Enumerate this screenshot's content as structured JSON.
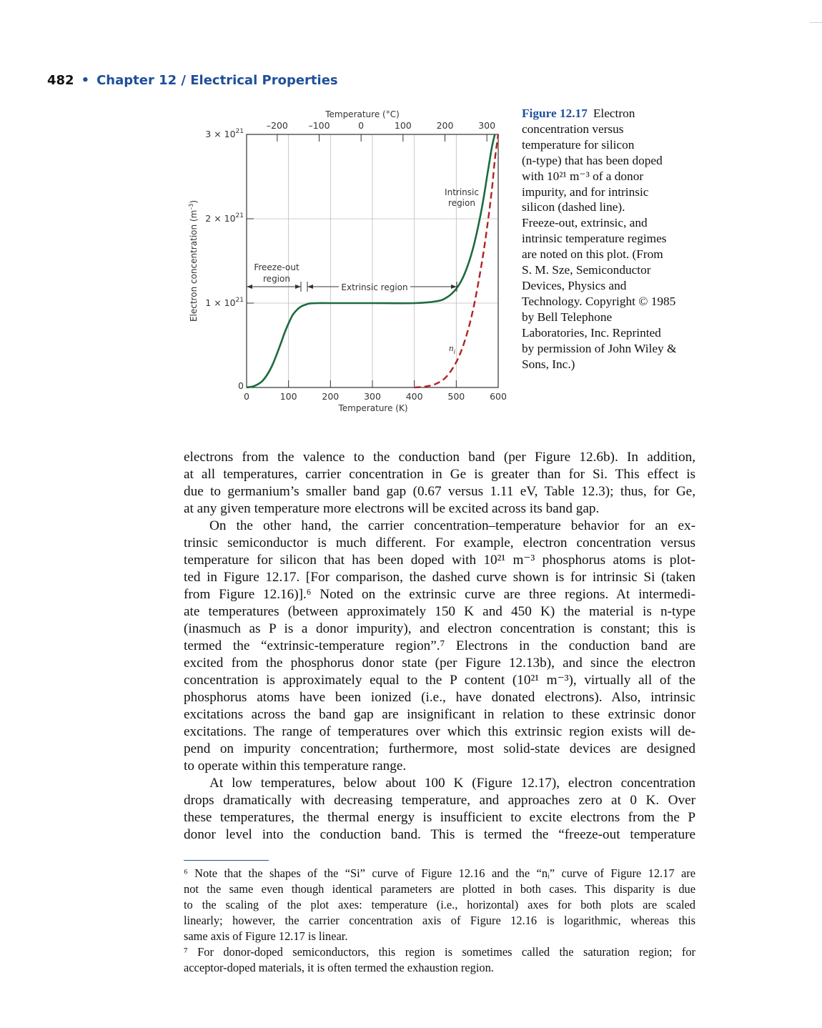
{
  "header": {
    "page_number": "482",
    "separator": "•",
    "chapter": "Chapter 12 / Electrical Properties"
  },
  "chart_data": {
    "type": "line",
    "title": "",
    "xlabel": "Temperature (K)",
    "x2label": "Temperature (°C)",
    "ylabel": "Electron concentration (m⁻³)",
    "xlim": [
      0,
      600
    ],
    "ylim": [
      0,
      3e+21
    ],
    "x_ticks": [
      "0",
      "100",
      "200",
      "300",
      "400",
      "500",
      "600"
    ],
    "x2_ticks": [
      "–200",
      "–100",
      "0",
      "100",
      "200",
      "300"
    ],
    "y_ticks": [
      {
        "mantissa": "0",
        "exp": ""
      },
      {
        "mantissa": "1 × 10",
        "exp": "21"
      },
      {
        "mantissa": "2 × 10",
        "exp": "21"
      },
      {
        "mantissa": "3 × 10",
        "exp": "21"
      }
    ],
    "grid": true,
    "series": [
      {
        "name": "",
        "style": "solid",
        "color": "#1d6b3c",
        "x": [
          0,
          20,
          40,
          60,
          80,
          90,
          100,
          110,
          120,
          130,
          140,
          150,
          170,
          200,
          300,
          400,
          450,
          475,
          500,
          520,
          540,
          560,
          575,
          585,
          592
        ],
        "y": [
          0,
          2e+19,
          9e+19,
          2.5e+20,
          5e+20,
          6.4e+20,
          7.6e+20,
          8.6e+20,
          9.2e+20,
          9.6e+20,
          9.8e+20,
          9.95e+20,
          1e+21,
          1e+21,
          1e+21,
          1e+21,
          1.02e+21,
          1.06e+21,
          1.17e+21,
          1.35e+21,
          1.65e+21,
          2.1e+21,
          2.55e+21,
          2.85e+21,
          3e+21
        ]
      },
      {
        "name": "",
        "style": "dashed",
        "color": "#b22222",
        "x": [
          400,
          425,
          450,
          475,
          500,
          520,
          540,
          560,
          575,
          585,
          592,
          600
        ],
        "y": [
          0,
          1e+19,
          4e+19,
          1.2e+20,
          3e+20,
          5.5e+20,
          9.2e+20,
          1.45e+21,
          1.95e+21,
          2.35e+21,
          2.7e+21,
          3e+21
        ]
      }
    ],
    "annotations": {
      "freeze_out": "Freeze-out\nregion",
      "extrinsic": "Extrinsic region",
      "intrinsic": "Intrinsic\nregion",
      "ni_main": "n",
      "ni_sub": "i"
    }
  },
  "caption": {
    "label": "Figure 12.17",
    "lines": [
      "Electron",
      "concentration versus",
      "temperature for silicon",
      "(n-type) that has been doped",
      "with 10²¹ m⁻³ of a donor",
      "impurity, and for intrinsic",
      "silicon (dashed line).",
      "Freeze-out, extrinsic, and",
      "intrinsic temperature regimes",
      "are noted on this plot. (From",
      "S. M. Sze, Semiconductor",
      "Devices, Physics and",
      "Technology. Copyright © 1985",
      "by Bell Telephone",
      "Laboratories, Inc. Reprinted",
      "by permission of John Wiley &",
      "Sons, Inc.)"
    ]
  },
  "body": {
    "lines": [
      "electrons from the valence to the conduction band (per Figure 12.6b). In addition,",
      "at all temperatures, carrier concentration in Ge is greater than for Si. This effect is",
      "due to germanium’s smaller band gap (0.67 versus 1.11 eV, Table 12.3); thus, for Ge,",
      "at any given temperature more electrons will be excited across its band gap.",
      "On the other hand, the carrier concentration–temperature behavior for an ex-",
      "trinsic semiconductor is much different. For example, electron concentration versus",
      "temperature for silicon that has been doped with 10²¹ m⁻³ phosphorus atoms is plot-",
      "ted in Figure 12.17. [For comparison, the dashed curve shown is for intrinsic Si (taken",
      "from Figure 12.16)].⁶ Noted on the extrinsic curve are three regions. At intermedi-",
      "ate temperatures (between approximately 150 K and 450 K) the material is n-type",
      "(inasmuch as P is a donor impurity), and electron concentration is constant; this is",
      "termed the “extrinsic-temperature region”.⁷ Electrons in the conduction band are",
      "excited from the phosphorus donor state (per Figure 12.13b), and since the electron",
      "concentration is approximately equal to the P content (10²¹ m⁻³), virtually all of the",
      "phosphorus atoms have been ionized (i.e., have donated electrons). Also, intrinsic",
      "excitations across the band gap are insignificant in relation to these extrinsic donor",
      "excitations. The range of temperatures over which this extrinsic region exists will de-",
      "pend on impurity concentration; furthermore, most solid-state devices are designed",
      "to operate within this temperature range.",
      "At low temperatures, below about 100 K (Figure 12.17), electron concentration",
      "drops dramatically with decreasing temperature, and approaches zero at 0 K. Over",
      "these temperatures, the thermal energy is insufficient to excite electrons from the P",
      "donor level into the conduction band. This is termed the “freeze-out temperature"
    ]
  },
  "footnotes": {
    "fn6": [
      "⁶ Note that the shapes of the “Si” curve of Figure 12.16 and the “nᵢ” curve of Figure 12.17 are",
      "not the same even though identical parameters are plotted in both cases. This disparity is due",
      "to the scaling of the plot axes: temperature (i.e., horizontal) axes for both plots are scaled",
      "linearly; however, the carrier concentration axis of Figure 12.16 is logarithmic, whereas this",
      "same axis of Figure 12.17 is linear."
    ],
    "fn7": [
      "⁷ For donor-doped semiconductors, this region is sometimes called the saturation region; for",
      "acceptor-doped materials, it is often termed the exhaustion region."
    ]
  }
}
